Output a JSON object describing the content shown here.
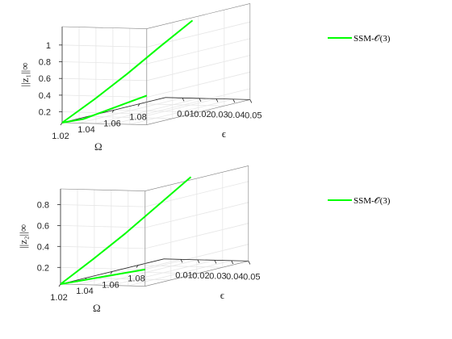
{
  "legend_label": "SSM-𝒪(3)",
  "colors": {
    "series": "#00ff00",
    "axis": "#262626",
    "grid": "#e6e6e6"
  },
  "chart_data": [
    {
      "type": "line",
      "view": "3d",
      "title": "",
      "xlabel": "Ω",
      "ylabel": "ϵ",
      "zlabel": "||z₁||∞",
      "xlim": [
        1.02,
        1.1
      ],
      "ylim": [
        0,
        0.05
      ],
      "zlim": [
        0.07,
        1.22
      ],
      "xticks": [
        "1.02",
        "1.04",
        "1.06",
        "1.08"
      ],
      "yticks": [
        "0.01",
        "0.02",
        "0.03",
        "0.04",
        "0.05"
      ],
      "zticks": [
        "0.2",
        "0.4",
        "0.6",
        "0.8",
        "1"
      ],
      "grid": true,
      "legend_position": "top-right",
      "series": [
        {
          "name": "SSM-𝒪(3)",
          "color": "#00ff00",
          "x": [
            1.02,
            1.04,
            1.06,
            1.08,
            1.1
          ],
          "y": [
            0.0,
            0.004,
            0.008,
            0.012,
            0.016
          ],
          "z": [
            0.07,
            0.28,
            0.51,
            0.76,
            1.0
          ]
        },
        {
          "name": "SSM-𝒪(3)",
          "color": "#00ff00",
          "x": [
            1.02,
            1.02,
            1.02,
            1.02,
            1.02
          ],
          "y": [
            0.0,
            0.0125,
            0.025,
            0.0375,
            0.05
          ],
          "z": [
            0.07,
            0.12,
            0.22,
            0.32,
            0.42
          ]
        }
      ]
    },
    {
      "type": "line",
      "view": "3d",
      "title": "",
      "xlabel": "Ω",
      "ylabel": "ϵ",
      "zlabel": "||z₂||∞",
      "xlim": [
        1.02,
        1.1
      ],
      "ylim": [
        0,
        0.05
      ],
      "zlim": [
        0.04,
        0.95
      ],
      "xticks": [
        "1.02",
        "1.04",
        "1.06",
        "1.08"
      ],
      "yticks": [
        "0.01",
        "0.02",
        "0.03",
        "0.04",
        "0.05"
      ],
      "zticks": [
        "0.2",
        "0.4",
        "0.6",
        "0.8"
      ],
      "grid": true,
      "legend_position": "top-right",
      "series": [
        {
          "name": "SSM-𝒪(3)",
          "color": "#00ff00",
          "x": [
            1.02,
            1.04,
            1.06,
            1.08,
            1.1
          ],
          "y": [
            0.0,
            0.004,
            0.008,
            0.012,
            0.016
          ],
          "z": [
            0.04,
            0.22,
            0.41,
            0.62,
            0.83
          ]
        },
        {
          "name": "SSM-𝒪(3)",
          "color": "#00ff00",
          "x": [
            1.02,
            1.02,
            1.02,
            1.02,
            1.02
          ],
          "y": [
            0.0,
            0.0125,
            0.025,
            0.0375,
            0.05
          ],
          "z": [
            0.04,
            0.08,
            0.12,
            0.16,
            0.2
          ]
        }
      ]
    }
  ]
}
